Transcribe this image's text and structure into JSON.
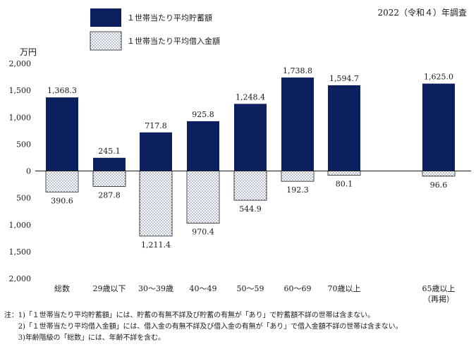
{
  "chart_data": {
    "type": "bar",
    "title": "",
    "year_label": "2022（令和４）年調査",
    "unit_label": "万円",
    "ylim": [
      -2000,
      2000
    ],
    "yticks": [
      {
        "value": 2000,
        "label": "2,000"
      },
      {
        "value": 1500,
        "label": "1,500"
      },
      {
        "value": 1000,
        "label": "1,000"
      },
      {
        "value": 500,
        "label": "500"
      },
      {
        "value": 0,
        "label": "0"
      },
      {
        "value": -500,
        "label": "500"
      },
      {
        "value": -1000,
        "label": "1,000"
      },
      {
        "value": -1500,
        "label": "1,500"
      },
      {
        "value": -2000,
        "label": "2,000"
      }
    ],
    "categories": [
      {
        "lines": [
          "総数"
        ]
      },
      {
        "lines": [
          "29歳以下"
        ]
      },
      {
        "lines": [
          "30～39歳"
        ]
      },
      {
        "lines": [
          "40～49"
        ]
      },
      {
        "lines": [
          "50～59"
        ]
      },
      {
        "lines": [
          "60～69"
        ]
      },
      {
        "lines": [
          "70歳以上"
        ]
      },
      {
        "lines": [
          "65歳以上",
          "（再掲）"
        ]
      }
    ],
    "series": [
      {
        "name": "１世帯当たり平均貯蓄額",
        "color": "#0c1f5e",
        "values": [
          1368.3,
          245.1,
          717.8,
          925.8,
          1248.4,
          1738.8,
          1594.7,
          1625.0
        ],
        "labels": [
          "1,368.3",
          "245.1",
          "717.8",
          "925.8",
          "1,248.4",
          "1,738.8",
          "1,594.7",
          "1,625.0"
        ]
      },
      {
        "name": "１世帯当たり平均借入金額",
        "pattern": "dots",
        "values": [
          390.6,
          287.8,
          1211.4,
          970.4,
          544.9,
          192.3,
          80.1,
          96.6
        ],
        "labels": [
          "390.6",
          "287.8",
          "1,211.4",
          "970.4",
          "544.9",
          "192.3",
          "80.1",
          "96.6"
        ]
      }
    ],
    "legend": "top-left",
    "grid": false
  },
  "notes": [
    "注：1)「１世帯当たり平均貯蓄額」には、貯蓄の有無不詳及び貯蓄の有無が「あり」で貯蓄額不詳の世帯は含まない。",
    "　　2)「１世帯当たり平均借入金額」には、借入金の有無不詳及び借入金の有無が「あり」で借入金額不詳の世帯は含まない。",
    "　　3)年齢階級の「総数」には、年齢不詳を含む。"
  ]
}
